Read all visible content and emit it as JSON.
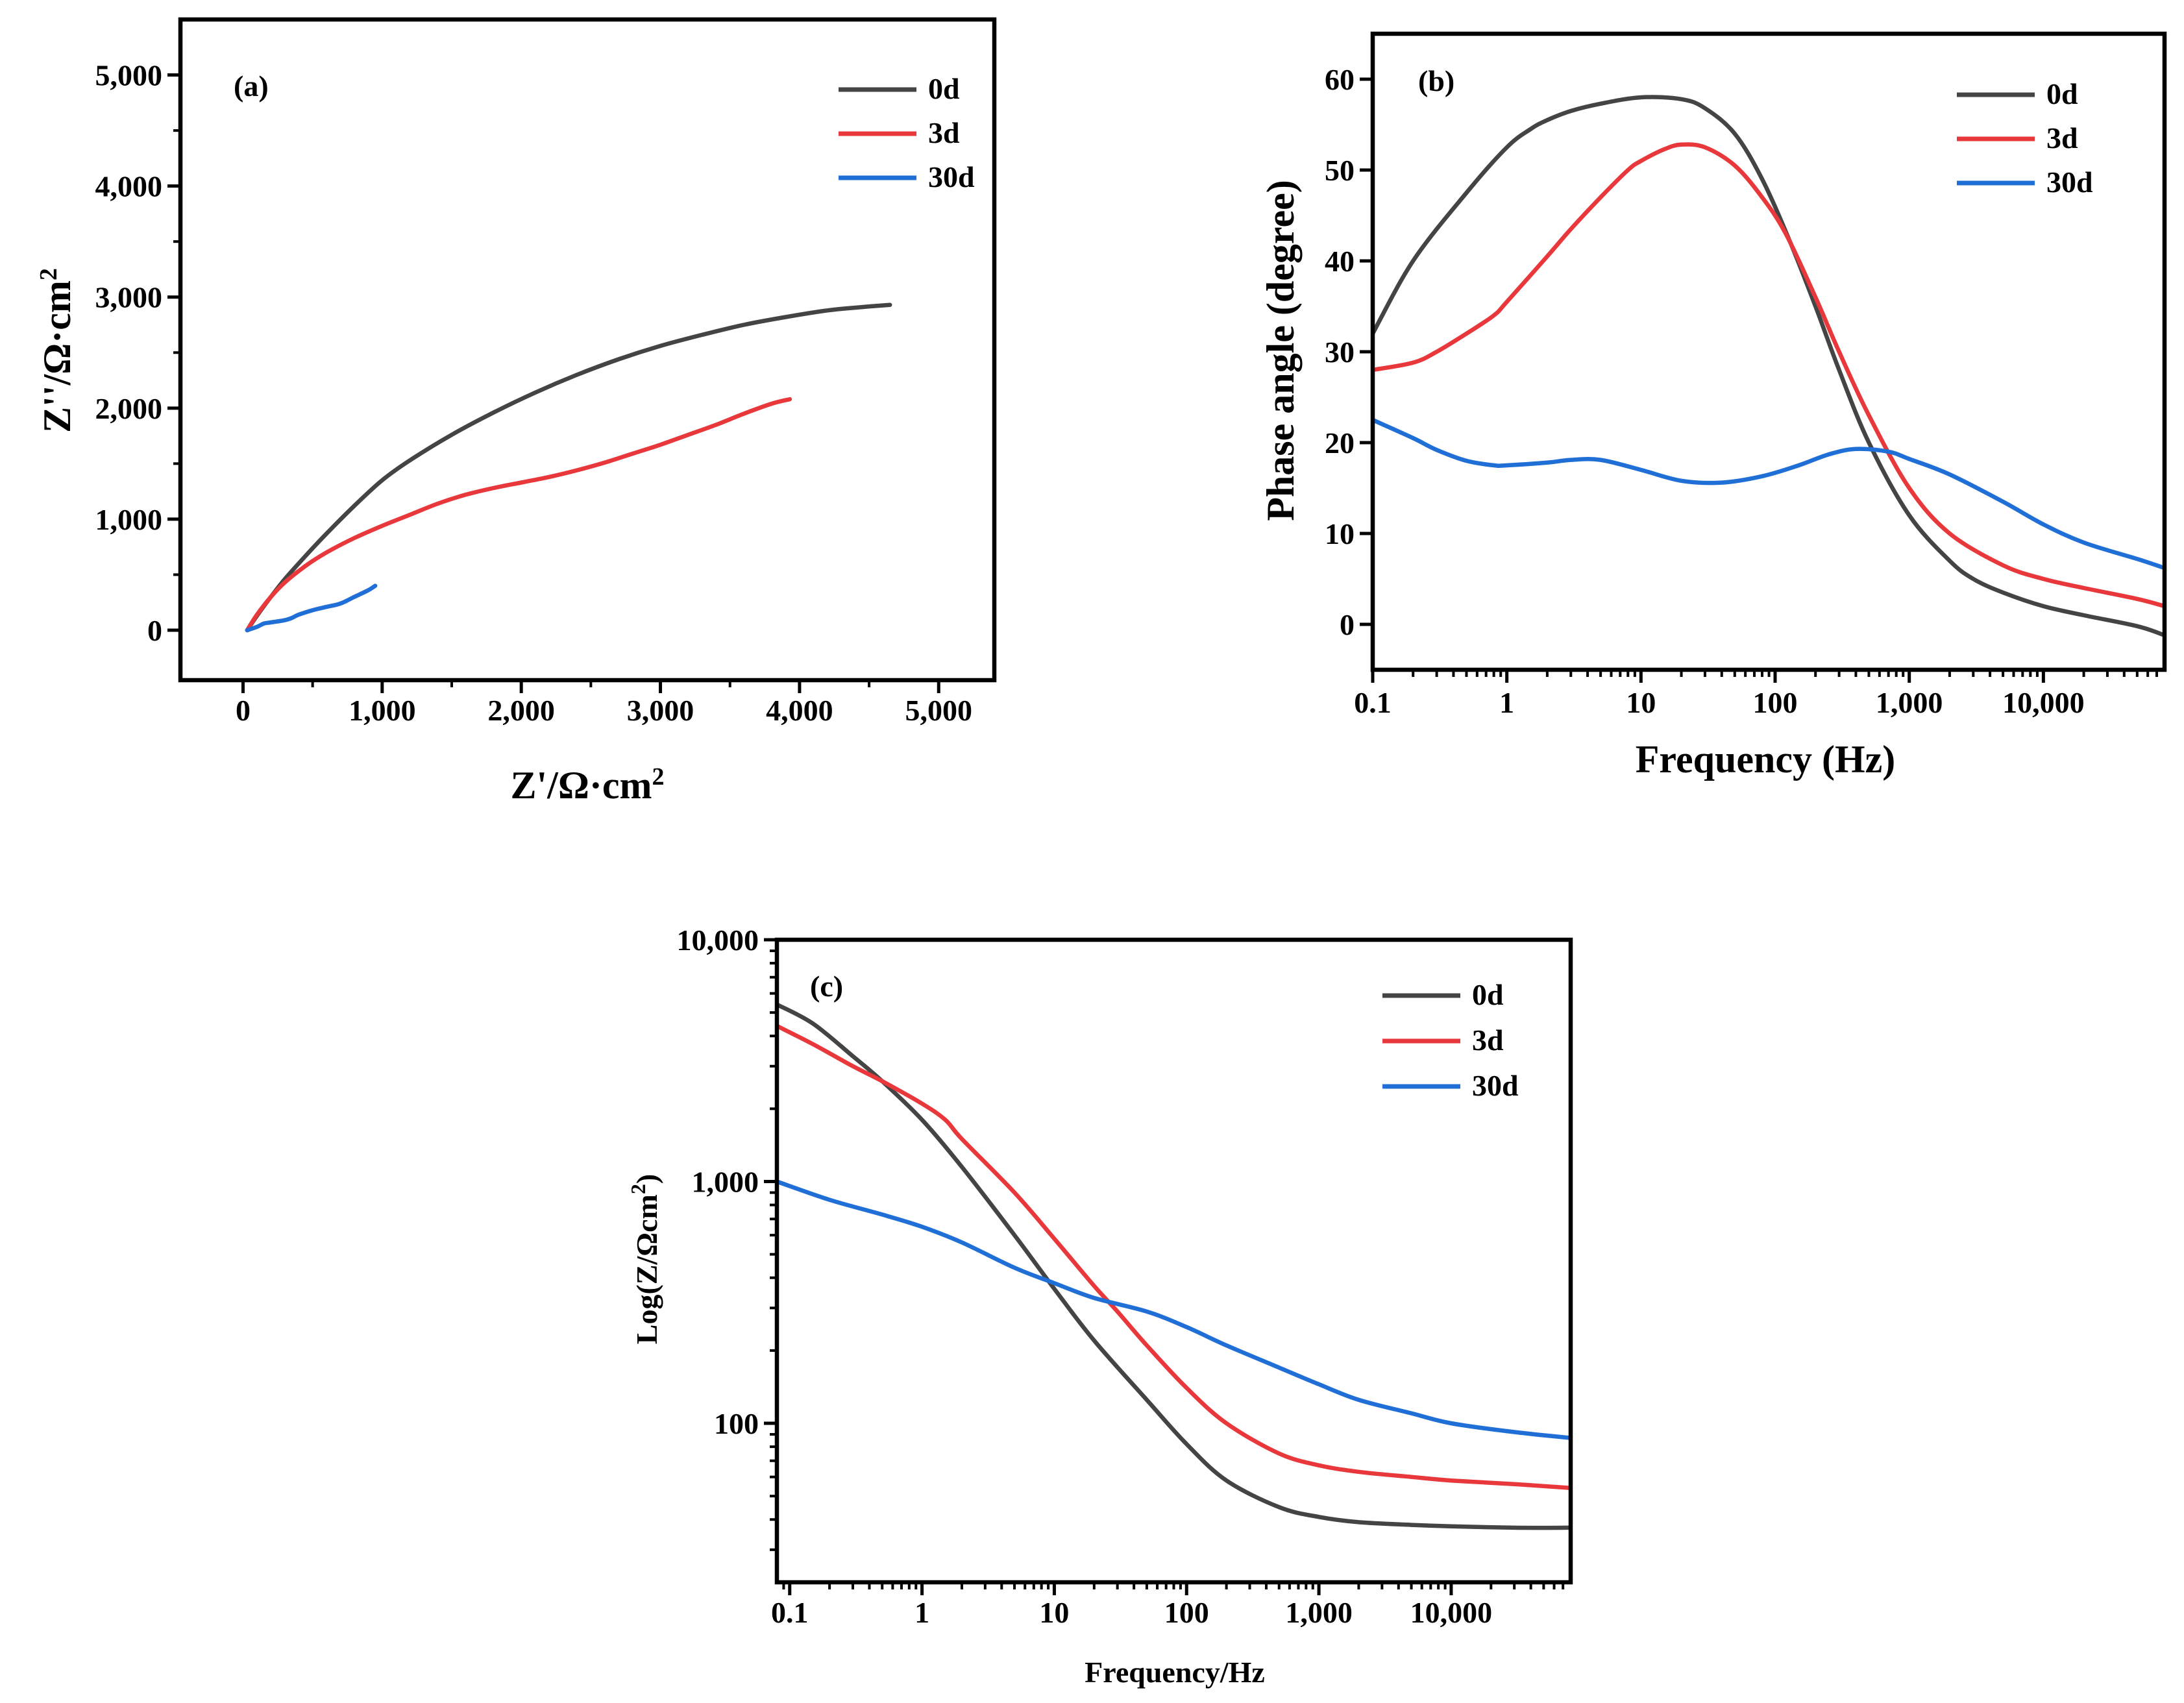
{
  "colors": {
    "0d": "#444444",
    "3d": "#e8383b",
    "30d": "#1f6fd6"
  },
  "chart_data": [
    {
      "id": "a",
      "type": "line",
      "panel_label": "(a)",
      "xlabel": "Z'/Ω·cm",
      "xlabel_sup": "2",
      "ylabel": "Z''/Ω·cm",
      "ylabel_sup": "2",
      "xlim": [
        -450,
        5400
      ],
      "ylim": [
        -450,
        5500
      ],
      "xticks": [
        0,
        1000,
        2000,
        3000,
        4000,
        5000
      ],
      "xtick_labels": [
        "0",
        "1,000",
        "2,000",
        "3,000",
        "4,000",
        "5,000"
      ],
      "yticks": [
        0,
        1000,
        2000,
        3000,
        4000,
        5000
      ],
      "ytick_labels": [
        "0",
        "1,000",
        "2,000",
        "3,000",
        "4,000",
        "5,000"
      ],
      "legend_position": "top-right",
      "series": [
        {
          "name": "0d",
          "x": [
            30,
            100,
            200,
            300,
            450,
            600,
            800,
            1000,
            1200,
            1500,
            1800,
            2100,
            2400,
            2700,
            3000,
            3300,
            3600,
            3900,
            4200,
            4450,
            4650
          ],
          "y": [
            0,
            130,
            300,
            460,
            670,
            870,
            1120,
            1350,
            1530,
            1760,
            1960,
            2140,
            2300,
            2440,
            2560,
            2660,
            2750,
            2820,
            2880,
            2910,
            2930
          ]
        },
        {
          "name": "3d",
          "x": [
            30,
            100,
            200,
            300,
            450,
            600,
            800,
            1000,
            1200,
            1400,
            1600,
            1800,
            2000,
            2200,
            2400,
            2600,
            2800,
            3000,
            3200,
            3400,
            3600,
            3800,
            3930
          ],
          "y": [
            0,
            140,
            300,
            430,
            580,
            700,
            830,
            940,
            1040,
            1140,
            1220,
            1280,
            1330,
            1380,
            1440,
            1510,
            1590,
            1670,
            1760,
            1850,
            1950,
            2040,
            2080
          ]
        },
        {
          "name": "30d",
          "x": [
            30,
            100,
            150,
            200,
            300,
            350,
            400,
            500,
            600,
            700,
            800,
            900,
            950
          ],
          "y": [
            0,
            30,
            60,
            70,
            90,
            110,
            140,
            180,
            210,
            240,
            300,
            360,
            400
          ]
        }
      ]
    },
    {
      "id": "b",
      "type": "line",
      "panel_label": "(b)",
      "xscale": "log",
      "xlabel": "Frequency (Hz)",
      "ylabel": "Phase angle (degree)",
      "xlim": [
        0.1,
        80000
      ],
      "ylim": [
        -5,
        65
      ],
      "xticks": [
        0.1,
        1,
        10,
        100,
        1000,
        10000
      ],
      "xtick_labels": [
        "0.1",
        "1",
        "10",
        "100",
        "1,000",
        "10,000"
      ],
      "yticks": [
        0,
        10,
        20,
        30,
        40,
        50,
        60
      ],
      "ytick_labels": [
        "0",
        "10",
        "20",
        "30",
        "40",
        "50",
        "60"
      ],
      "legend_position": "top-right",
      "series": [
        {
          "name": "0d",
          "x": [
            0.1,
            0.2,
            0.5,
            1,
            1.5,
            2,
            3,
            5,
            10,
            20,
            30,
            50,
            80,
            130,
            200,
            300,
            500,
            1000,
            2000,
            3000,
            5000,
            10000,
            20000,
            50000,
            80000
          ],
          "y": [
            32,
            40,
            47.5,
            52.5,
            54.5,
            55.5,
            56.5,
            57.3,
            58,
            57.8,
            56.8,
            54,
            49,
            42,
            35,
            28,
            20,
            12,
            7,
            5,
            3.5,
            2,
            1,
            -0.2,
            -1.2
          ]
        },
        {
          "name": "3d",
          "x": [
            0.1,
            0.2,
            0.3,
            0.5,
            0.8,
            1,
            2,
            3,
            5,
            8,
            10,
            15,
            20,
            30,
            50,
            80,
            120,
            200,
            300,
            500,
            1000,
            2000,
            5000,
            10000,
            20000,
            50000,
            80000
          ],
          "y": [
            28,
            28.8,
            30,
            32,
            34,
            35.5,
            40.5,
            43.5,
            47,
            50,
            51,
            52.3,
            52.8,
            52.5,
            50.5,
            47,
            43,
            36,
            30,
            23,
            15,
            10,
            6.5,
            5,
            4,
            2.8,
            2
          ]
        },
        {
          "name": "30d",
          "x": [
            0.1,
            0.2,
            0.3,
            0.5,
            0.8,
            1,
            2,
            3,
            5,
            10,
            20,
            40,
            80,
            150,
            250,
            400,
            700,
            1000,
            2000,
            5000,
            10000,
            20000,
            50000,
            80000
          ],
          "y": [
            22.5,
            20.5,
            19.2,
            18,
            17.5,
            17.5,
            17.8,
            18.1,
            18.1,
            17,
            15.8,
            15.6,
            16.3,
            17.5,
            18.7,
            19.3,
            19,
            18.2,
            16.5,
            13.5,
            11,
            9,
            7.2,
            6.2
          ]
        }
      ]
    },
    {
      "id": "c",
      "type": "line",
      "panel_label": "(c)",
      "xscale": "log",
      "yscale": "log",
      "xlabel": "Frequency/Hz",
      "ylabel": "Log(Z/Ωcm",
      "ylabel_sup": "2",
      "ylabel_end": ")",
      "xlim": [
        0.08,
        80000
      ],
      "ylim": [
        22,
        10000
      ],
      "xticks": [
        0.1,
        1,
        10,
        100,
        1000,
        10000
      ],
      "xtick_labels": [
        "0.1",
        "1",
        "10",
        "100",
        "1,000",
        "10,000"
      ],
      "yticks": [
        100,
        1000,
        10000
      ],
      "ytick_labels": [
        "100",
        "1,000",
        "10,000"
      ],
      "legend_position": "top-right",
      "series": [
        {
          "name": "0d",
          "x": [
            0.08,
            0.15,
            0.3,
            0.5,
            1,
            2,
            5,
            10,
            20,
            50,
            100,
            200,
            500,
            1000,
            2000,
            5000,
            10000,
            30000,
            80000
          ],
          "y": [
            5400,
            4500,
            3300,
            2600,
            1800,
            1150,
            600,
            360,
            220,
            125,
            82,
            58,
            45,
            41,
            39,
            38,
            37.5,
            37,
            37
          ]
        },
        {
          "name": "3d",
          "x": [
            0.08,
            0.15,
            0.3,
            0.5,
            1,
            1.5,
            2,
            5,
            10,
            20,
            30,
            50,
            100,
            200,
            500,
            1000,
            2000,
            5000,
            10000,
            30000,
            80000
          ],
          "y": [
            4400,
            3700,
            3000,
            2600,
            2100,
            1800,
            1500,
            900,
            580,
            370,
            290,
            210,
            140,
            100,
            75,
            67,
            63,
            60,
            58,
            56,
            54
          ]
        },
        {
          "name": "30d",
          "x": [
            0.08,
            0.2,
            0.5,
            1,
            2,
            5,
            10,
            20,
            50,
            100,
            200,
            500,
            1000,
            2000,
            5000,
            10000,
            30000,
            80000
          ],
          "y": [
            1000,
            840,
            730,
            650,
            560,
            440,
            380,
            330,
            290,
            250,
            210,
            170,
            145,
            125,
            110,
            100,
            92,
            87
          ]
        }
      ]
    }
  ]
}
